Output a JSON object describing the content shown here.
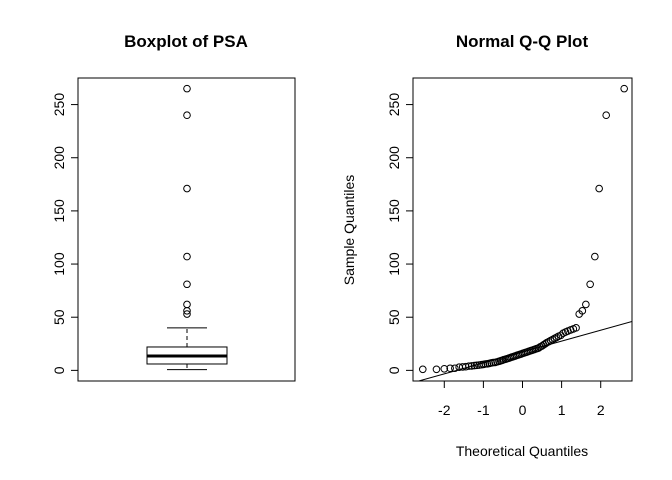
{
  "chart_data": [
    {
      "type": "boxplot",
      "title": "Boxplot of PSA",
      "xlabel": "",
      "ylabel": "",
      "ylim": [
        -10,
        275
      ],
      "yticks": [
        "0",
        "50",
        "100",
        "150",
        "200",
        "250"
      ],
      "box": {
        "lower_whisker": 0.7,
        "q1": 6,
        "median": 13.5,
        "q3": 22,
        "upper_whisker": 40,
        "outliers": [
          265,
          240,
          171,
          107,
          81,
          62,
          56,
          53
        ]
      }
    },
    {
      "type": "scatter",
      "title": "Normal Q-Q Plot",
      "xlabel": "Theoretical Quantiles",
      "ylabel": "Sample Quantiles",
      "xlim": [
        -2.8,
        2.8
      ],
      "ylim": [
        -10,
        275
      ],
      "xticks": [
        "-2",
        "-1",
        "0",
        "1",
        "2"
      ],
      "yticks": [
        "0",
        "50",
        "100",
        "150",
        "200",
        "250"
      ],
      "reference_line": {
        "x": [
          -2.8,
          2.8
        ],
        "y": [
          -11.5,
          46
        ]
      },
      "points": {
        "x": [
          -2.55,
          -2.2,
          -2.0,
          -1.85,
          -1.73,
          -1.62,
          -1.53,
          -1.45,
          -1.37,
          -1.3,
          -1.23,
          -1.17,
          -1.11,
          -1.05,
          -1.0,
          -0.95,
          -0.9,
          -0.85,
          -0.8,
          -0.75,
          -0.7,
          -0.65,
          -0.6,
          -0.56,
          -0.52,
          -0.48,
          -0.43,
          -0.39,
          -0.35,
          -0.31,
          -0.27,
          -0.23,
          -0.19,
          -0.15,
          -0.11,
          -0.07,
          -0.03,
          0.01,
          0.05,
          0.09,
          0.13,
          0.17,
          0.21,
          0.25,
          0.29,
          0.33,
          0.37,
          0.41,
          0.45,
          0.5,
          0.54,
          0.58,
          0.62,
          0.67,
          0.72,
          0.77,
          0.82,
          0.87,
          0.92,
          0.98,
          1.04,
          1.1,
          1.16,
          1.23,
          1.3,
          1.37,
          1.45,
          1.53,
          1.62,
          1.73,
          1.85,
          1.96,
          2.14,
          2.6
        ],
        "y": [
          1,
          1,
          1.5,
          2,
          2,
          3,
          3.2,
          3.5,
          4,
          4.2,
          4.5,
          4.8,
          5,
          5.3,
          5.6,
          6,
          6.2,
          6.5,
          7,
          7.3,
          7.5,
          8,
          8.5,
          9,
          9.5,
          10,
          10.5,
          11,
          11.5,
          12,
          12.5,
          13,
          13.5,
          14,
          14.5,
          15,
          15.5,
          16,
          16.5,
          17,
          17.5,
          18,
          18.5,
          19,
          19.5,
          20,
          20.5,
          21,
          22,
          23,
          24,
          25,
          26,
          27,
          28,
          29,
          30,
          31,
          32,
          33,
          35,
          36,
          37,
          38,
          39,
          40,
          53,
          56,
          62,
          81,
          107,
          171,
          240,
          265
        ]
      }
    }
  ]
}
